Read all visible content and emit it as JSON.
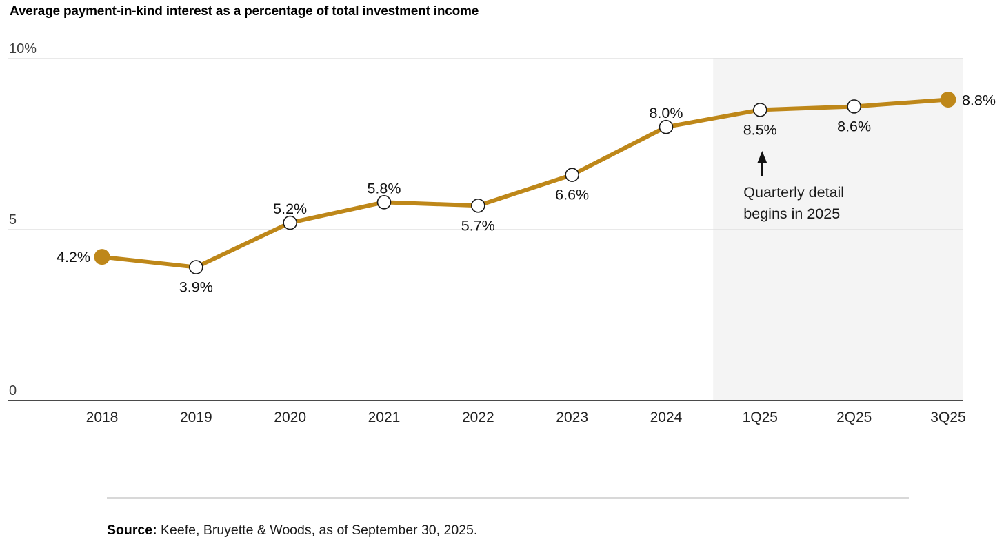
{
  "title": "Average payment-in-kind interest as a percentage of total investment income",
  "source": {
    "label": "Source:",
    "text": "Keefe, Bruyette & Woods, as of September 30, 2025."
  },
  "annotation": {
    "line1": "Quarterly detail",
    "line2": "begins in 2025"
  },
  "colors": {
    "line": "#BE8719",
    "shade": "#F4F4F4",
    "grid": "#DCDCDC",
    "axis": "#4A4A4A",
    "label_text": "#111111",
    "tick_text": "#3D3D3D",
    "annotation_text": "#1A1A1A"
  },
  "chart_data": {
    "type": "line",
    "categories": [
      "2018",
      "2019",
      "2020",
      "2021",
      "2022",
      "2023",
      "2024",
      "1Q25",
      "2Q25",
      "3Q25"
    ],
    "values": [
      4.2,
      3.9,
      5.2,
      5.8,
      5.7,
      6.6,
      8.0,
      8.5,
      8.6,
      8.8
    ],
    "point_labels": [
      "4.2%",
      "3.9%",
      "5.2%",
      "5.8%",
      "5.7%",
      "6.6%",
      "8.0%",
      "8.5%",
      "8.6%",
      "8.8%"
    ],
    "label_placement": [
      "left",
      "below",
      "above",
      "above",
      "below",
      "below",
      "above",
      "below",
      "below",
      "right"
    ],
    "marker_filled": [
      true,
      false,
      false,
      false,
      false,
      false,
      false,
      false,
      false,
      true
    ],
    "title": "Average payment-in-kind interest as a percentage of total investment income",
    "xlabel": "",
    "ylabel": "",
    "ylim": [
      0,
      10
    ],
    "yticks": [
      {
        "value": 0,
        "label": "0"
      },
      {
        "value": 5,
        "label": "5"
      },
      {
        "value": 10,
        "label": "10%"
      }
    ],
    "grid": "horizontal",
    "legend": "none",
    "shaded_region": {
      "starts_before_category": "1Q25",
      "note": "Quarterly detail begins in 2025"
    }
  }
}
